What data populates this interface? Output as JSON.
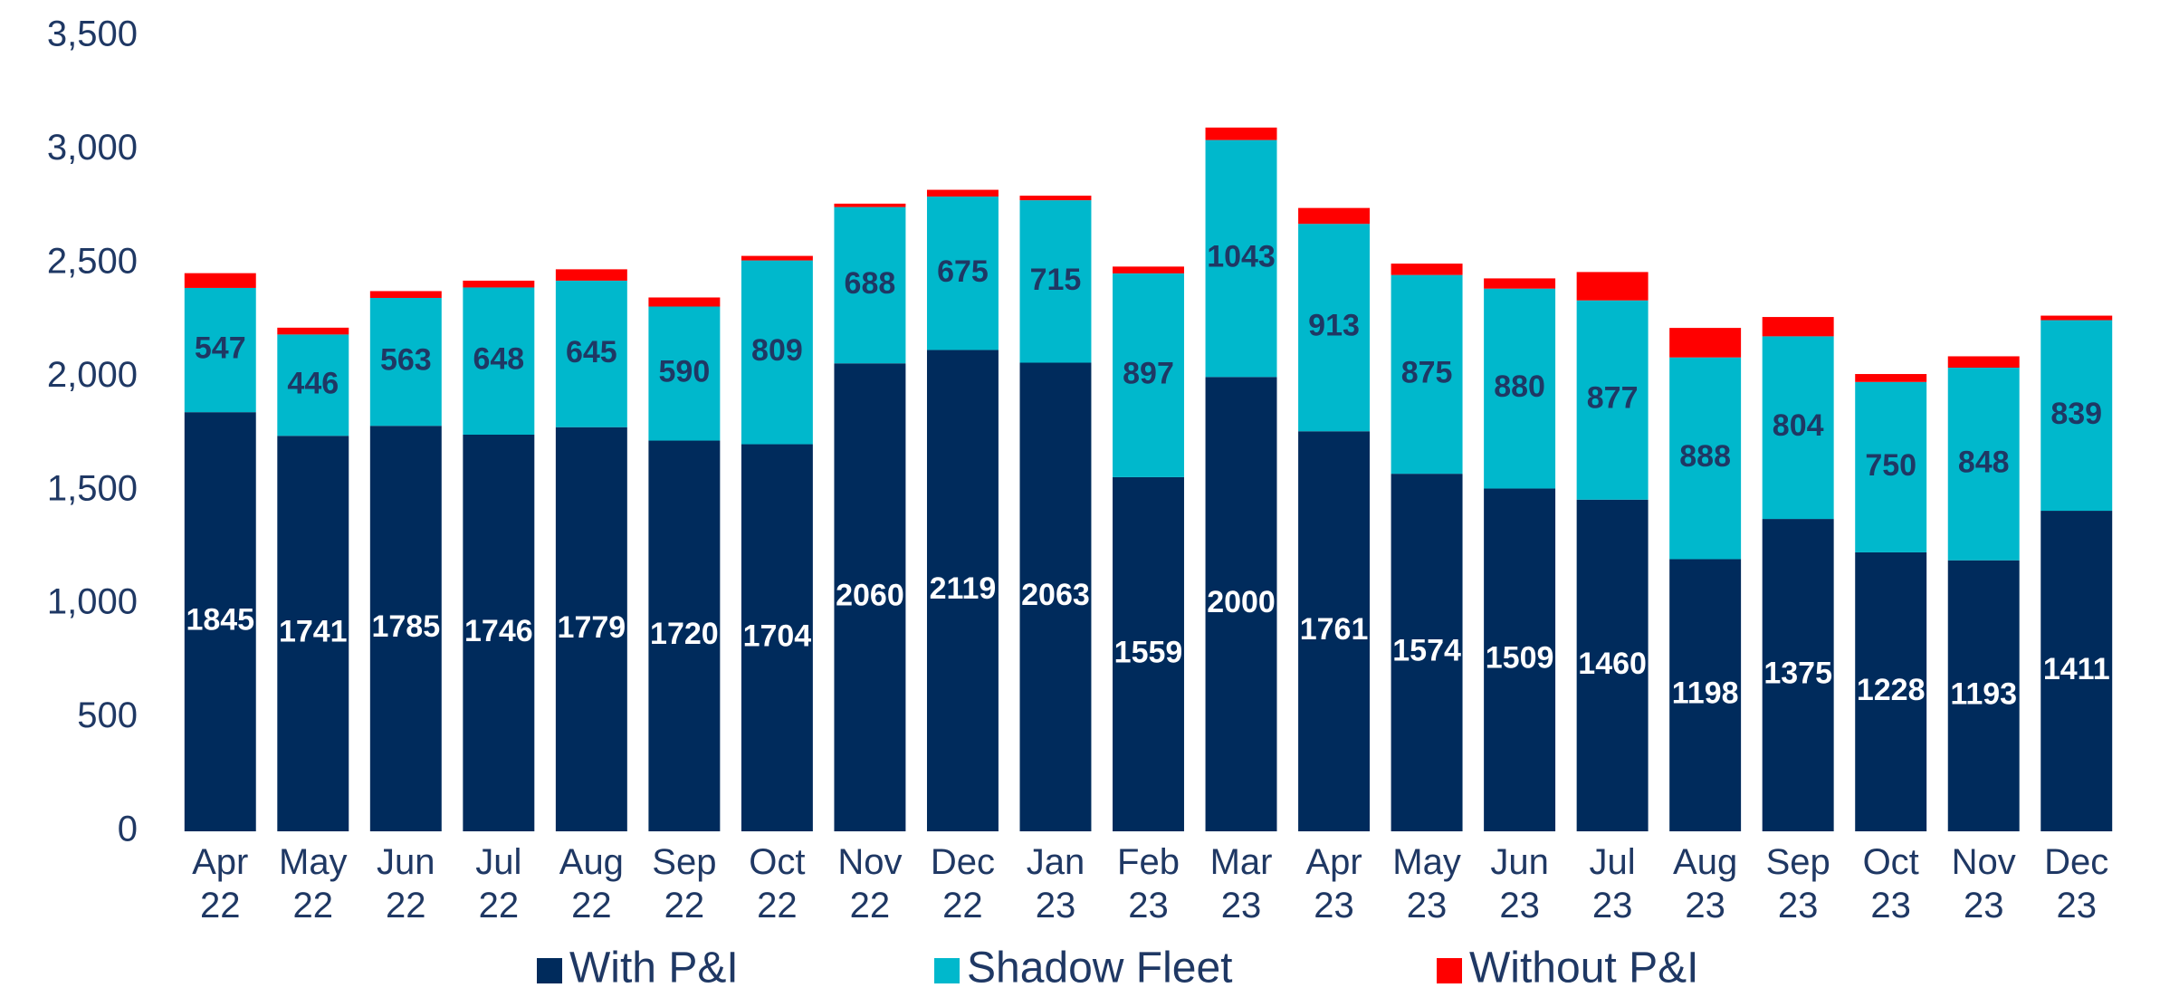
{
  "chart_data": {
    "type": "stacked_bar",
    "categories": [
      "Apr 22",
      "May 22",
      "Jun 22",
      "Jul 22",
      "Aug 22",
      "Sep 22",
      "Oct 22",
      "Nov 22",
      "Dec 22",
      "Jan 23",
      "Feb 23",
      "Mar 23",
      "Apr 23",
      "May 23",
      "Jun 23",
      "Jul 23",
      "Aug 23",
      "Sep 23",
      "Oct 23",
      "Nov 23",
      "Dec 23"
    ],
    "series": [
      {
        "name": "With P&I",
        "color": "#002b5c",
        "label_color": "#ffffff",
        "labels": true,
        "values": [
          1845,
          1741,
          1785,
          1746,
          1779,
          1720,
          1704,
          2060,
          2119,
          2063,
          1559,
          2000,
          1761,
          1574,
          1509,
          1460,
          1198,
          1375,
          1228,
          1193,
          1411
        ]
      },
      {
        "name": "Shadow Fleet",
        "color": "#00b8cc",
        "label_color": "#1f3864",
        "labels": true,
        "values": [
          547,
          446,
          563,
          648,
          645,
          590,
          809,
          688,
          675,
          715,
          897,
          1043,
          913,
          875,
          880,
          877,
          888,
          804,
          750,
          848,
          839
        ]
      },
      {
        "name": "Without P&I",
        "color": "#ff0000",
        "labels": false,
        "values": [
          65,
          30,
          30,
          30,
          50,
          40,
          20,
          15,
          30,
          20,
          30,
          55,
          70,
          50,
          45,
          125,
          130,
          85,
          35,
          50,
          20
        ]
      }
    ],
    "ylim": [
      0,
      3500
    ],
    "yticks": [
      0,
      500,
      {
        "value": 1000,
        "label": "1,000"
      },
      {
        "value": 1500,
        "label": "1,500"
      },
      {
        "value": 2000,
        "label": "2,000"
      },
      {
        "value": 2500,
        "label": "2,500"
      },
      {
        "value": 3000,
        "label": "3,000"
      },
      {
        "value": 3500,
        "label": "3,500"
      }
    ],
    "grid": false,
    "legend": "bottom"
  }
}
